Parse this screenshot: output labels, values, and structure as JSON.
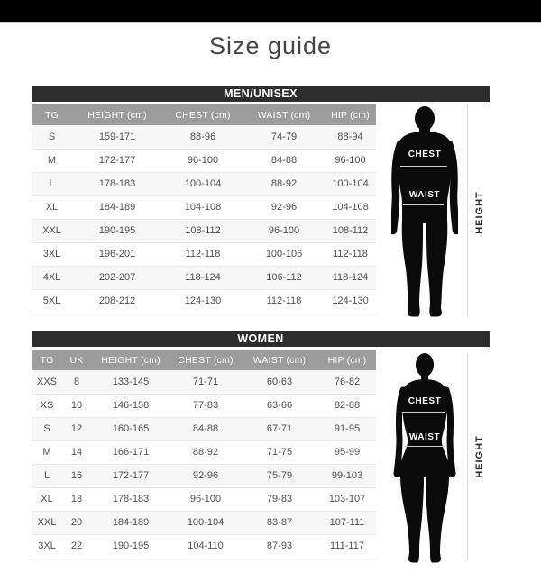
{
  "page": {
    "title": "Size guide"
  },
  "colors": {
    "top_bar": "#000000",
    "table_title_bar": "#2d2d2d",
    "column_header_bg": "#9c9c9c",
    "row_alt_bg": "#f7f7f7",
    "cell_text": "#4f4f4f",
    "border": "#e9e9e9",
    "silhouette": "#0b0b0b",
    "measure_line": "#cfcfcf",
    "title_text": "#454545"
  },
  "men_table": {
    "title": "MEN/UNISEX",
    "columns": [
      "TG",
      "HEIGHT (cm)",
      "CHEST (cm)",
      "WAIST (cm)",
      "HIP (cm)"
    ],
    "rows": [
      [
        "S",
        "159-171",
        "88-96",
        "74-79",
        "88-94"
      ],
      [
        "M",
        "172-177",
        "96-100",
        "84-88",
        "96-100"
      ],
      [
        "L",
        "178-183",
        "100-104",
        "88-92",
        "100-104"
      ],
      [
        "XL",
        "184-189",
        "104-108",
        "92-96",
        "104-108"
      ],
      [
        "XXL",
        "190-195",
        "108-112",
        "96-100",
        "108-112"
      ],
      [
        "3XL",
        "196-201",
        "112-118",
        "100-106",
        "112-118"
      ],
      [
        "4XL",
        "202-207",
        "118-124",
        "106-112",
        "118-124"
      ],
      [
        "5XL",
        "208-212",
        "124-130",
        "112-118",
        "124-130"
      ]
    ],
    "figure": {
      "chest_label": "CHEST",
      "waist_label": "WAIST",
      "height_label": "HEIGHT"
    }
  },
  "women_table": {
    "title": "WOMEN",
    "columns": [
      "TG",
      "UK",
      "HEIGHT (cm)",
      "CHEST (cm)",
      "WAIST (cm)",
      "HIP (cm)"
    ],
    "rows": [
      [
        "XXS",
        "8",
        "133-145",
        "71-71",
        "60-63",
        "76-82"
      ],
      [
        "XS",
        "10",
        "146-158",
        "77-83",
        "63-66",
        "82-88"
      ],
      [
        "S",
        "12",
        "160-165",
        "84-88",
        "67-71",
        "91-95"
      ],
      [
        "M",
        "14",
        "166-171",
        "88-92",
        "71-75",
        "95-99"
      ],
      [
        "L",
        "16",
        "172-177",
        "92-96",
        "75-79",
        "99-103"
      ],
      [
        "XL",
        "18",
        "178-183",
        "96-100",
        "79-83",
        "103-107"
      ],
      [
        "XXL",
        "20",
        "184-189",
        "100-104",
        "83-87",
        "107-111"
      ],
      [
        "3XL",
        "22",
        "190-195",
        "104-110",
        "87-93",
        "111-117"
      ]
    ],
    "figure": {
      "chest_label": "CHEST",
      "waist_label": "WAIST",
      "height_label": "HEIGHT"
    }
  }
}
